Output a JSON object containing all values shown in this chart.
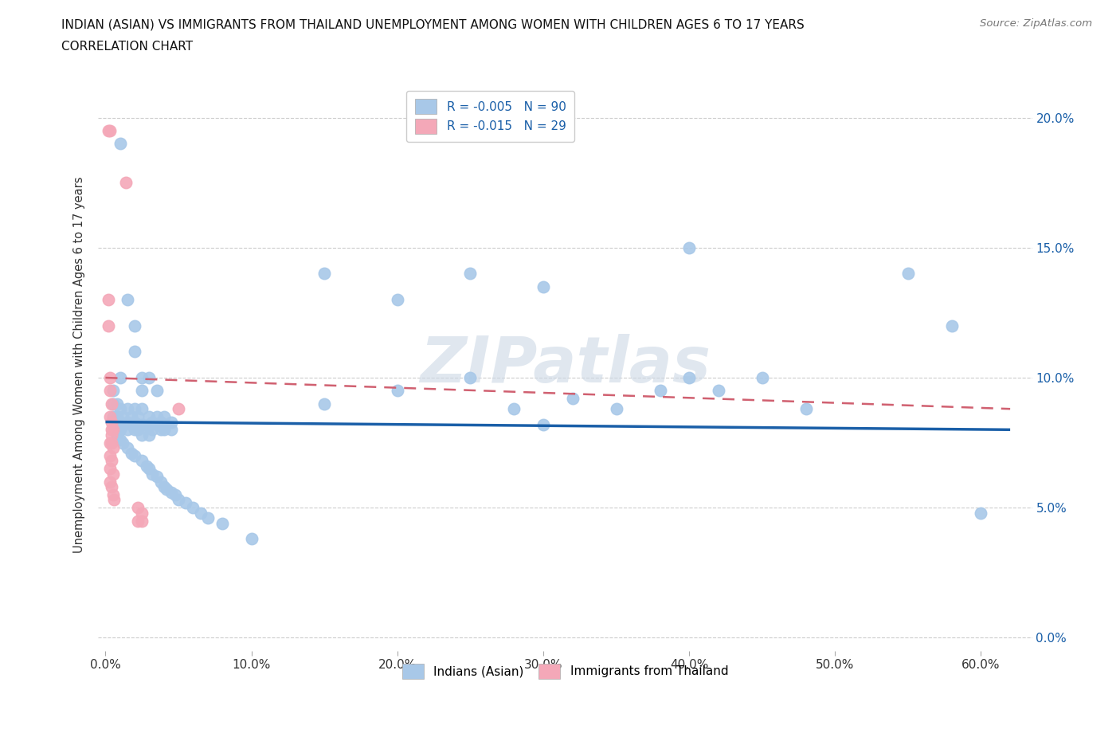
{
  "title_line1": "INDIAN (ASIAN) VS IMMIGRANTS FROM THAILAND UNEMPLOYMENT AMONG WOMEN WITH CHILDREN AGES 6 TO 17 YEARS",
  "title_line2": "CORRELATION CHART",
  "source": "Source: ZipAtlas.com",
  "ylabel": "Unemployment Among Women with Children Ages 6 to 17 years",
  "xlabel_ticks": [
    "0.0%",
    "10.0%",
    "20.0%",
    "30.0%",
    "40.0%",
    "50.0%",
    "60.0%"
  ],
  "xlabel_vals": [
    0.0,
    0.1,
    0.2,
    0.3,
    0.4,
    0.5,
    0.6
  ],
  "ylabel_ticks": [
    "0.0%",
    "5.0%",
    "10.0%",
    "15.0%",
    "20.0%"
  ],
  "ylabel_vals": [
    0.0,
    0.05,
    0.1,
    0.15,
    0.2
  ],
  "xlim": [
    -0.005,
    0.635
  ],
  "ylim": [
    -0.005,
    0.215
  ],
  "blue_R": "-0.005",
  "blue_N": "90",
  "pink_R": "-0.015",
  "pink_N": "29",
  "blue_color": "#a8c8e8",
  "pink_color": "#f4a8b8",
  "blue_line_color": "#1a5fa8",
  "pink_line_color": "#d06070",
  "blue_scatter": [
    [
      0.01,
      0.19
    ],
    [
      0.01,
      0.1
    ],
    [
      0.015,
      0.13
    ],
    [
      0.02,
      0.12
    ],
    [
      0.02,
      0.11
    ],
    [
      0.025,
      0.1
    ],
    [
      0.025,
      0.095
    ],
    [
      0.03,
      0.1
    ],
    [
      0.035,
      0.095
    ],
    [
      0.005,
      0.095
    ],
    [
      0.005,
      0.09
    ],
    [
      0.005,
      0.085
    ],
    [
      0.008,
      0.09
    ],
    [
      0.008,
      0.085
    ],
    [
      0.01,
      0.088
    ],
    [
      0.01,
      0.083
    ],
    [
      0.01,
      0.08
    ],
    [
      0.012,
      0.085
    ],
    [
      0.012,
      0.082
    ],
    [
      0.015,
      0.088
    ],
    [
      0.015,
      0.083
    ],
    [
      0.015,
      0.08
    ],
    [
      0.018,
      0.085
    ],
    [
      0.018,
      0.082
    ],
    [
      0.02,
      0.088
    ],
    [
      0.02,
      0.083
    ],
    [
      0.02,
      0.08
    ],
    [
      0.022,
      0.085
    ],
    [
      0.022,
      0.082
    ],
    [
      0.022,
      0.08
    ],
    [
      0.025,
      0.088
    ],
    [
      0.025,
      0.082
    ],
    [
      0.025,
      0.078
    ],
    [
      0.03,
      0.085
    ],
    [
      0.03,
      0.082
    ],
    [
      0.03,
      0.078
    ],
    [
      0.032,
      0.083
    ],
    [
      0.032,
      0.08
    ],
    [
      0.035,
      0.085
    ],
    [
      0.035,
      0.082
    ],
    [
      0.038,
      0.083
    ],
    [
      0.038,
      0.08
    ],
    [
      0.04,
      0.085
    ],
    [
      0.04,
      0.082
    ],
    [
      0.04,
      0.08
    ],
    [
      0.045,
      0.083
    ],
    [
      0.045,
      0.08
    ],
    [
      0.008,
      0.078
    ],
    [
      0.01,
      0.076
    ],
    [
      0.012,
      0.075
    ],
    [
      0.015,
      0.073
    ],
    [
      0.018,
      0.071
    ],
    [
      0.02,
      0.07
    ],
    [
      0.025,
      0.068
    ],
    [
      0.028,
      0.066
    ],
    [
      0.03,
      0.065
    ],
    [
      0.032,
      0.063
    ],
    [
      0.035,
      0.062
    ],
    [
      0.038,
      0.06
    ],
    [
      0.04,
      0.058
    ],
    [
      0.042,
      0.057
    ],
    [
      0.045,
      0.056
    ],
    [
      0.048,
      0.055
    ],
    [
      0.05,
      0.053
    ],
    [
      0.055,
      0.052
    ],
    [
      0.06,
      0.05
    ],
    [
      0.065,
      0.048
    ],
    [
      0.07,
      0.046
    ],
    [
      0.08,
      0.044
    ],
    [
      0.1,
      0.038
    ],
    [
      0.15,
      0.14
    ],
    [
      0.15,
      0.09
    ],
    [
      0.2,
      0.13
    ],
    [
      0.2,
      0.095
    ],
    [
      0.25,
      0.14
    ],
    [
      0.25,
      0.1
    ],
    [
      0.28,
      0.088
    ],
    [
      0.3,
      0.135
    ],
    [
      0.3,
      0.082
    ],
    [
      0.32,
      0.092
    ],
    [
      0.35,
      0.088
    ],
    [
      0.38,
      0.095
    ],
    [
      0.4,
      0.15
    ],
    [
      0.4,
      0.1
    ],
    [
      0.42,
      0.095
    ],
    [
      0.45,
      0.1
    ],
    [
      0.48,
      0.088
    ],
    [
      0.55,
      0.14
    ],
    [
      0.58,
      0.12
    ],
    [
      0.6,
      0.048
    ]
  ],
  "pink_scatter": [
    [
      0.002,
      0.195
    ],
    [
      0.003,
      0.195
    ],
    [
      0.002,
      0.13
    ],
    [
      0.014,
      0.175
    ],
    [
      0.002,
      0.12
    ],
    [
      0.003,
      0.1
    ],
    [
      0.003,
      0.095
    ],
    [
      0.004,
      0.09
    ],
    [
      0.003,
      0.085
    ],
    [
      0.004,
      0.083
    ],
    [
      0.004,
      0.08
    ],
    [
      0.005,
      0.08
    ],
    [
      0.004,
      0.078
    ],
    [
      0.003,
      0.075
    ],
    [
      0.004,
      0.075
    ],
    [
      0.005,
      0.073
    ],
    [
      0.003,
      0.07
    ],
    [
      0.004,
      0.068
    ],
    [
      0.003,
      0.065
    ],
    [
      0.005,
      0.063
    ],
    [
      0.003,
      0.06
    ],
    [
      0.004,
      0.058
    ],
    [
      0.005,
      0.055
    ],
    [
      0.006,
      0.053
    ],
    [
      0.022,
      0.05
    ],
    [
      0.022,
      0.045
    ],
    [
      0.025,
      0.048
    ],
    [
      0.025,
      0.045
    ],
    [
      0.05,
      0.088
    ]
  ],
  "watermark_text": "ZIPatlas",
  "blue_trend_x": [
    0.0,
    0.62
  ],
  "blue_trend_y": [
    0.083,
    0.08
  ],
  "pink_trend_start_x": 0.0,
  "pink_trend_start_y": 0.1,
  "pink_trend_end_x": 0.62,
  "pink_trend_end_y": 0.088
}
